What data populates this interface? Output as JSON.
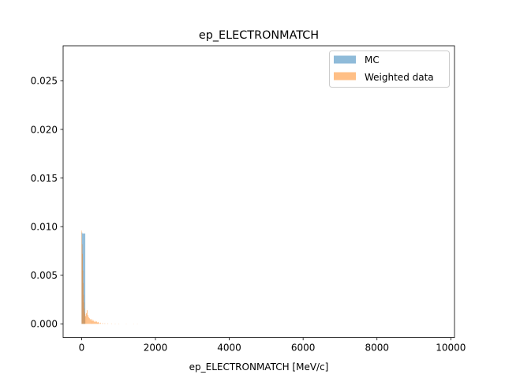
{
  "chart_data": {
    "type": "bar",
    "title": "ep_ELECTRONMATCH",
    "xlabel": "ep_ELECTRONMATCH [MeV/c]",
    "ylabel": "",
    "xlim": [
      -500,
      10100
    ],
    "ylim": [
      -0.0014,
      0.0286
    ],
    "xticks": [
      0,
      2000,
      4000,
      6000,
      8000,
      10000
    ],
    "yticks": [
      0.0,
      0.005,
      0.01,
      0.015,
      0.02,
      0.025
    ],
    "ytick_labels": [
      "0.000",
      "0.005",
      "0.010",
      "0.015",
      "0.020",
      "0.025"
    ],
    "grid": false,
    "legend": {
      "placement": "top-right"
    },
    "series": [
      {
        "name": "MC",
        "color": "#1f77b4",
        "alpha": 0.5,
        "bins": [
          {
            "x0": 0,
            "x1": 20,
            "y": 0.0094
          },
          {
            "x0": 20,
            "x1": 40,
            "y": 0.0093
          },
          {
            "x0": 40,
            "x1": 60,
            "y": 0.0093
          },
          {
            "x0": 60,
            "x1": 80,
            "y": 0.0093
          },
          {
            "x0": 80,
            "x1": 100,
            "y": 0.0093
          }
        ]
      },
      {
        "name": "Weighted data",
        "color": "#ff7f0e",
        "alpha": 0.5,
        "bins": [
          {
            "x0": 0,
            "x1": 10,
            "y": 0.0096
          },
          {
            "x0": 10,
            "x1": 20,
            "y": 0.0082
          },
          {
            "x0": 20,
            "x1": 30,
            "y": 0.0072
          },
          {
            "x0": 30,
            "x1": 40,
            "y": 0.0055
          },
          {
            "x0": 40,
            "x1": 50,
            "y": 0.0042
          },
          {
            "x0": 50,
            "x1": 60,
            "y": 0.003
          },
          {
            "x0": 60,
            "x1": 70,
            "y": 0.0022
          },
          {
            "x0": 70,
            "x1": 80,
            "y": 0.0016
          },
          {
            "x0": 80,
            "x1": 90,
            "y": 0.0012
          },
          {
            "x0": 90,
            "x1": 100,
            "y": 0.001
          },
          {
            "x0": 100,
            "x1": 120,
            "y": 0.0008
          },
          {
            "x0": 120,
            "x1": 140,
            "y": 0.0011
          },
          {
            "x0": 140,
            "x1": 160,
            "y": 0.0014
          },
          {
            "x0": 160,
            "x1": 180,
            "y": 0.0009
          },
          {
            "x0": 180,
            "x1": 200,
            "y": 0.0007
          },
          {
            "x0": 200,
            "x1": 220,
            "y": 0.0006
          },
          {
            "x0": 220,
            "x1": 240,
            "y": 0.0005
          },
          {
            "x0": 240,
            "x1": 260,
            "y": 0.0004
          },
          {
            "x0": 260,
            "x1": 280,
            "y": 0.0005
          },
          {
            "x0": 280,
            "x1": 300,
            "y": 0.0003
          },
          {
            "x0": 300,
            "x1": 320,
            "y": 0.0004
          },
          {
            "x0": 320,
            "x1": 340,
            "y": 0.0003
          },
          {
            "x0": 340,
            "x1": 360,
            "y": 0.0002
          },
          {
            "x0": 360,
            "x1": 380,
            "y": 0.0003
          },
          {
            "x0": 380,
            "x1": 400,
            "y": 0.0002
          },
          {
            "x0": 400,
            "x1": 420,
            "y": 0.00025
          },
          {
            "x0": 420,
            "x1": 440,
            "y": 0.00015
          },
          {
            "x0": 440,
            "x1": 460,
            "y": 0.0002
          },
          {
            "x0": 460,
            "x1": 480,
            "y": 0.0001
          },
          {
            "x0": 500,
            "x1": 520,
            "y": 0.00012
          },
          {
            "x0": 560,
            "x1": 580,
            "y": 8e-05
          },
          {
            "x0": 620,
            "x1": 640,
            "y": 6e-05
          },
          {
            "x0": 700,
            "x1": 720,
            "y": 5e-05
          },
          {
            "x0": 800,
            "x1": 820,
            "y": 4e-05
          },
          {
            "x0": 900,
            "x1": 920,
            "y": 3e-05
          },
          {
            "x0": 1000,
            "x1": 1020,
            "y": 3e-05
          },
          {
            "x0": 1200,
            "x1": 1220,
            "y": 2e-05
          },
          {
            "x0": 1400,
            "x1": 1420,
            "y": 2e-05
          },
          {
            "x0": 1500,
            "x1": 1520,
            "y": 2e-05
          }
        ]
      }
    ]
  }
}
